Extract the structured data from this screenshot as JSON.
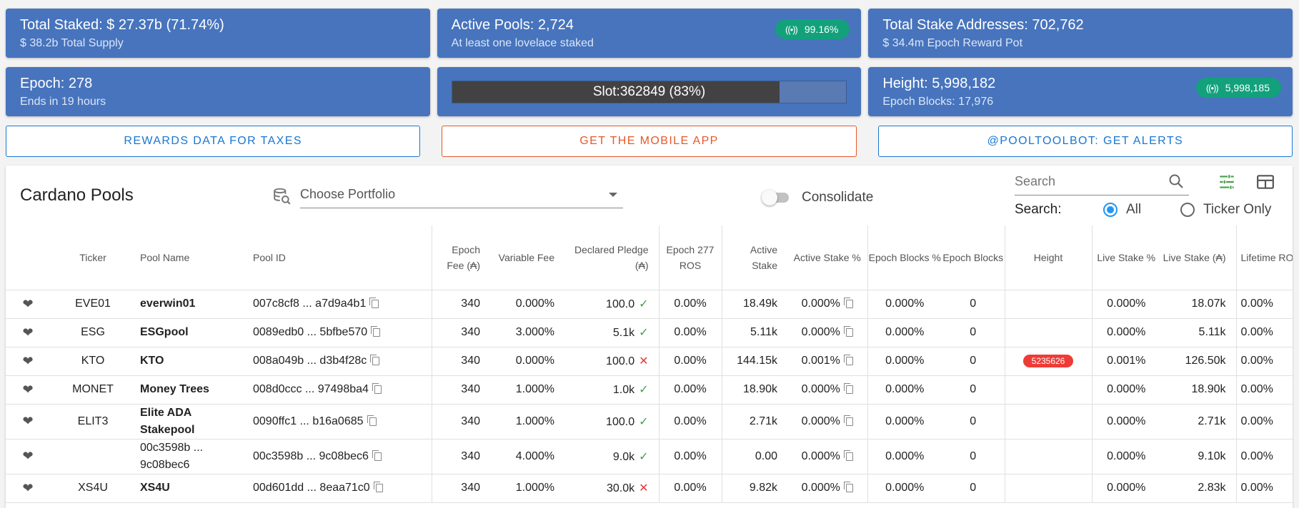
{
  "cards": {
    "total_staked": {
      "title": "Total Staked: $ 27.37b (71.74%)",
      "sub": "$ 38.2b Total Supply"
    },
    "active_pools": {
      "title": "Active Pools: 2,724",
      "sub": "At least one lovelace staked",
      "badge": "99.16%"
    },
    "stake_addresses": {
      "title": "Total Stake Addresses: 702,762",
      "sub": "$ 34.4m Epoch Reward Pot"
    },
    "epoch": {
      "title": "Epoch: 278",
      "sub": "Ends in 19 hours"
    },
    "slot": {
      "label": "Slot:362849 (83%)",
      "progress": 0.83
    },
    "height": {
      "title": "Height: 5,998,182",
      "sub": "Epoch Blocks: 17,976",
      "badge": "5,998,185"
    }
  },
  "actions": {
    "taxes": "REWARDS DATA FOR TAXES",
    "mobile": "GET THE MOBILE APP",
    "alerts": "@POOLTOOLBOT: GET ALERTS"
  },
  "panel": {
    "title": "Cardano Pools",
    "portfolio_placeholder": "Choose Portfolio",
    "consolidate": "Consolidate",
    "search_placeholder": "Search",
    "search_mode_label": "Search:",
    "radio_all": "All",
    "radio_ticker": "Ticker Only"
  },
  "columns": {
    "ticker": "Ticker",
    "pool_name": "Pool Name",
    "pool_id": "Pool ID",
    "epoch_fee": "Epoch Fee (₳)",
    "variable_fee": "Variable Fee",
    "declared_pledge": "Declared Pledge (₳)",
    "epoch_ros": "Epoch 277 ROS",
    "active_stake": "Active Stake",
    "active_stake_pct": "Active Stake %",
    "epoch_blocks_pct": "Epoch Blocks %",
    "epoch_blocks": "Epoch Blocks",
    "height": "Height",
    "live_stake_pct": "Live Stake %",
    "live_stake": "Live Stake (₳)",
    "lifetime_ros": "Lifetime ROS"
  },
  "rows": [
    {
      "ticker": "EVE01",
      "name": "everwin01",
      "bold": true,
      "id": "007c8cf8 ... a7d9a4b1",
      "fee": "340",
      "vfee": "0.000%",
      "pledge": "100.0",
      "pledge_ok": true,
      "ros": "0.00%",
      "stake": "18.49k",
      "stake_pct": "0.000%",
      "blocks_pct": "0.000%",
      "blocks": "0",
      "height": "",
      "live_pct": "0.000%",
      "live": "18.07k",
      "lifetime": "0.00%"
    },
    {
      "ticker": "ESG",
      "name": "ESGpool",
      "bold": true,
      "id": "0089edb0 ... 5bfbe570",
      "fee": "340",
      "vfee": "3.000%",
      "pledge": "5.1k",
      "pledge_ok": true,
      "ros": "0.00%",
      "stake": "5.11k",
      "stake_pct": "0.000%",
      "blocks_pct": "0.000%",
      "blocks": "0",
      "height": "",
      "live_pct": "0.000%",
      "live": "5.11k",
      "lifetime": "0.00%"
    },
    {
      "ticker": "KTO",
      "name": "KTO",
      "bold": true,
      "id": "008a049b ... d3b4f28c",
      "fee": "340",
      "vfee": "0.000%",
      "pledge": "100.0",
      "pledge_ok": false,
      "ros": "0.00%",
      "stake": "144.15k",
      "stake_pct": "0.001%",
      "blocks_pct": "0.000%",
      "blocks": "0",
      "height": "5235626",
      "live_pct": "0.001%",
      "live": "126.50k",
      "lifetime": "0.00%"
    },
    {
      "ticker": "MONET",
      "name": "Money Trees",
      "bold": true,
      "id": "008d0ccc ... 97498ba4",
      "fee": "340",
      "vfee": "1.000%",
      "pledge": "1.0k",
      "pledge_ok": true,
      "ros": "0.00%",
      "stake": "18.90k",
      "stake_pct": "0.000%",
      "blocks_pct": "0.000%",
      "blocks": "0",
      "height": "",
      "live_pct": "0.000%",
      "live": "18.90k",
      "lifetime": "0.00%"
    },
    {
      "ticker": "ELIT3",
      "name": "Elite ADA Stakepool",
      "bold": true,
      "id": "0090ffc1 ... b16a0685",
      "fee": "340",
      "vfee": "1.000%",
      "pledge": "100.0",
      "pledge_ok": true,
      "ros": "0.00%",
      "stake": "2.71k",
      "stake_pct": "0.000%",
      "blocks_pct": "0.000%",
      "blocks": "0",
      "height": "",
      "live_pct": "0.000%",
      "live": "2.71k",
      "lifetime": "0.00%"
    },
    {
      "ticker": "",
      "name": "00c3598b ... 9c08bec6",
      "bold": false,
      "id": "00c3598b ... 9c08bec6",
      "fee": "340",
      "vfee": "4.000%",
      "pledge": "9.0k",
      "pledge_ok": true,
      "ros": "0.00%",
      "stake": "0.00",
      "stake_pct": "0.000%",
      "blocks_pct": "0.000%",
      "blocks": "0",
      "height": "",
      "live_pct": "0.000%",
      "live": "9.10k",
      "lifetime": "0.00%"
    },
    {
      "ticker": "XS4U",
      "name": "XS4U",
      "bold": true,
      "id": "00d601dd ... 8eaa71c0",
      "fee": "340",
      "vfee": "1.000%",
      "pledge": "30.0k",
      "pledge_ok": false,
      "ros": "0.00%",
      "stake": "9.82k",
      "stake_pct": "0.000%",
      "blocks_pct": "0.000%",
      "blocks": "0",
      "height": "",
      "live_pct": "0.000%",
      "live": "2.83k",
      "lifetime": "0.00%"
    }
  ],
  "colors": {
    "card": "#4774bd",
    "badge": "#13a17b",
    "accent": "#1976d2",
    "orange": "#e5582a",
    "height_badge": "#ef3b36"
  }
}
